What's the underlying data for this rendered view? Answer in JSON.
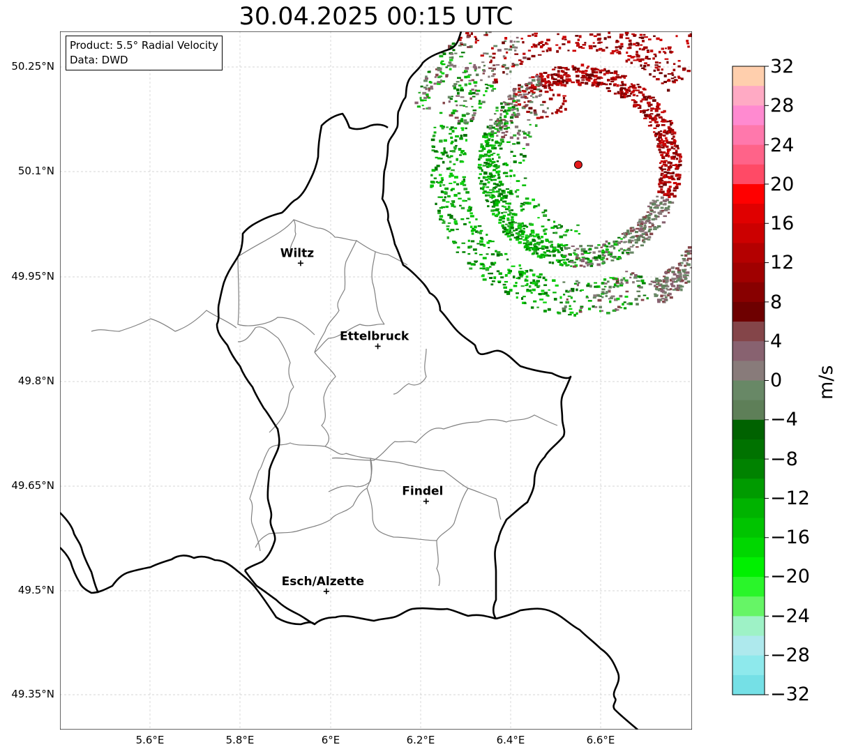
{
  "title": "30.04.2025 00:15 UTC",
  "info": {
    "product": "Product: 5.5° Radial Velocity",
    "data": "Data: DWD"
  },
  "map": {
    "lat_ticks": [
      "50.25°N",
      "50.1°N",
      "49.95°N",
      "49.8°N",
      "49.65°N",
      "49.5°N",
      "49.35°N"
    ],
    "lon_ticks": [
      "5.6°E",
      "5.8°E",
      "6°E",
      "6.2°E",
      "6.4°E",
      "6.6°E"
    ],
    "cities": [
      {
        "name": "Wiltz",
        "lat": 49.968,
        "lon": 5.933
      },
      {
        "name": "Ettelbruck",
        "lat": 49.849,
        "lon": 6.104
      },
      {
        "name": "Findel",
        "lat": 49.627,
        "lon": 6.211
      },
      {
        "name": "Esch/Alzette",
        "lat": 49.498,
        "lon": 5.99
      }
    ],
    "radar_site": {
      "lat": 50.109,
      "lon": 6.548
    },
    "extent": {
      "lon_min": 5.4,
      "lon_max": 6.8,
      "lat_min": 49.3,
      "lat_max": 50.3
    }
  },
  "colorbar": {
    "unit": "m/s",
    "ticks": [
      "32",
      "28",
      "24",
      "20",
      "16",
      "12",
      "8",
      "4",
      "0",
      "−4",
      "−8",
      "−12",
      "−16",
      "−20",
      "−24",
      "−28",
      "−32"
    ],
    "colors_top_to_bottom": [
      "#ffcfad",
      "#ffaac4",
      "#ff8ad0",
      "#ff78ac",
      "#ff6389",
      "#ff4a66",
      "#ff0000",
      "#e00000",
      "#cc0000",
      "#b40000",
      "#a00000",
      "#880000",
      "#6e0000",
      "#844549",
      "#886270",
      "#887b7a",
      "#688866",
      "#5e7f58",
      "#006200",
      "#007200",
      "#008200",
      "#009b00",
      "#00b300",
      "#00c400",
      "#00d700",
      "#00f000",
      "#2af52a",
      "#66f566",
      "#9ef2c6",
      "#aee9ed",
      "#8ee9ec",
      "#75e0e6"
    ],
    "color_low": "#00c000",
    "color_high": "#c00000"
  }
}
